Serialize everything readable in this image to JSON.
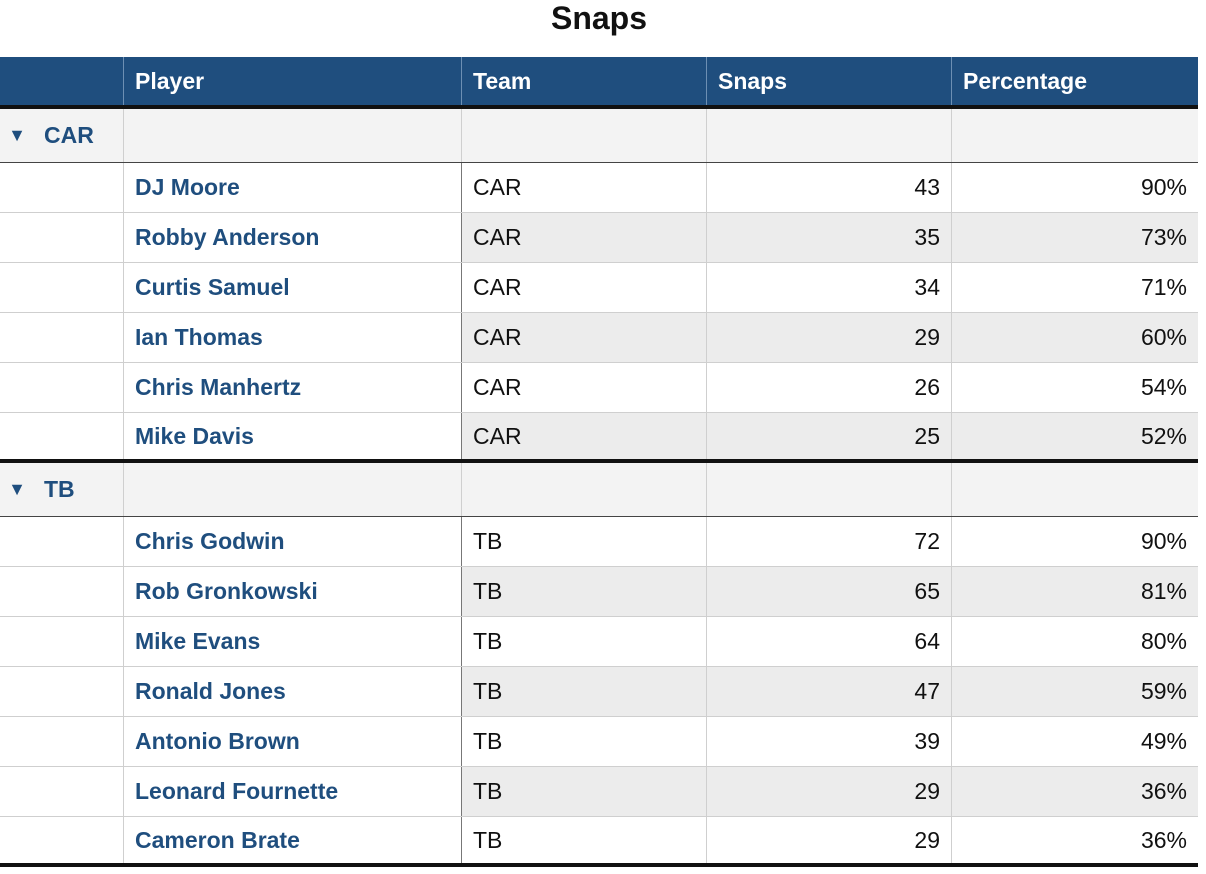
{
  "title": "Snaps",
  "columns": [
    "",
    "Player",
    "Team",
    "Snaps",
    "Percentage"
  ],
  "groups": [
    {
      "label": "CAR",
      "rows": [
        {
          "player": "DJ Moore",
          "team": "CAR",
          "snaps": "43",
          "pct": "90%"
        },
        {
          "player": "Robby Anderson",
          "team": "CAR",
          "snaps": "35",
          "pct": "73%"
        },
        {
          "player": "Curtis Samuel",
          "team": "CAR",
          "snaps": "34",
          "pct": "71%"
        },
        {
          "player": "Ian Thomas",
          "team": "CAR",
          "snaps": "29",
          "pct": "60%"
        },
        {
          "player": "Chris Manhertz",
          "team": "CAR",
          "snaps": "26",
          "pct": "54%"
        },
        {
          "player": "Mike Davis",
          "team": "CAR",
          "snaps": "25",
          "pct": "52%"
        }
      ]
    },
    {
      "label": "TB",
      "rows": [
        {
          "player": "Chris Godwin",
          "team": "TB",
          "snaps": "72",
          "pct": "90%"
        },
        {
          "player": "Rob Gronkowski",
          "team": "TB",
          "snaps": "65",
          "pct": "81%"
        },
        {
          "player": "Mike Evans",
          "team": "TB",
          "snaps": "64",
          "pct": "80%"
        },
        {
          "player": "Ronald Jones",
          "team": "TB",
          "snaps": "47",
          "pct": "59%"
        },
        {
          "player": "Antonio Brown",
          "team": "TB",
          "snaps": "39",
          "pct": "49%"
        },
        {
          "player": "Leonard Fournette",
          "team": "TB",
          "snaps": "29",
          "pct": "36%"
        },
        {
          "player": "Cameron Brate",
          "team": "TB",
          "snaps": "29",
          "pct": "36%"
        }
      ]
    }
  ],
  "colors": {
    "header_bg": "#1f4e7e",
    "accent": "#1f4e7e",
    "group_bg": "#f3f3f3",
    "alt_row": "#ececec"
  },
  "icons": {
    "group_toggle": "disclosure-triangle-down-icon"
  }
}
